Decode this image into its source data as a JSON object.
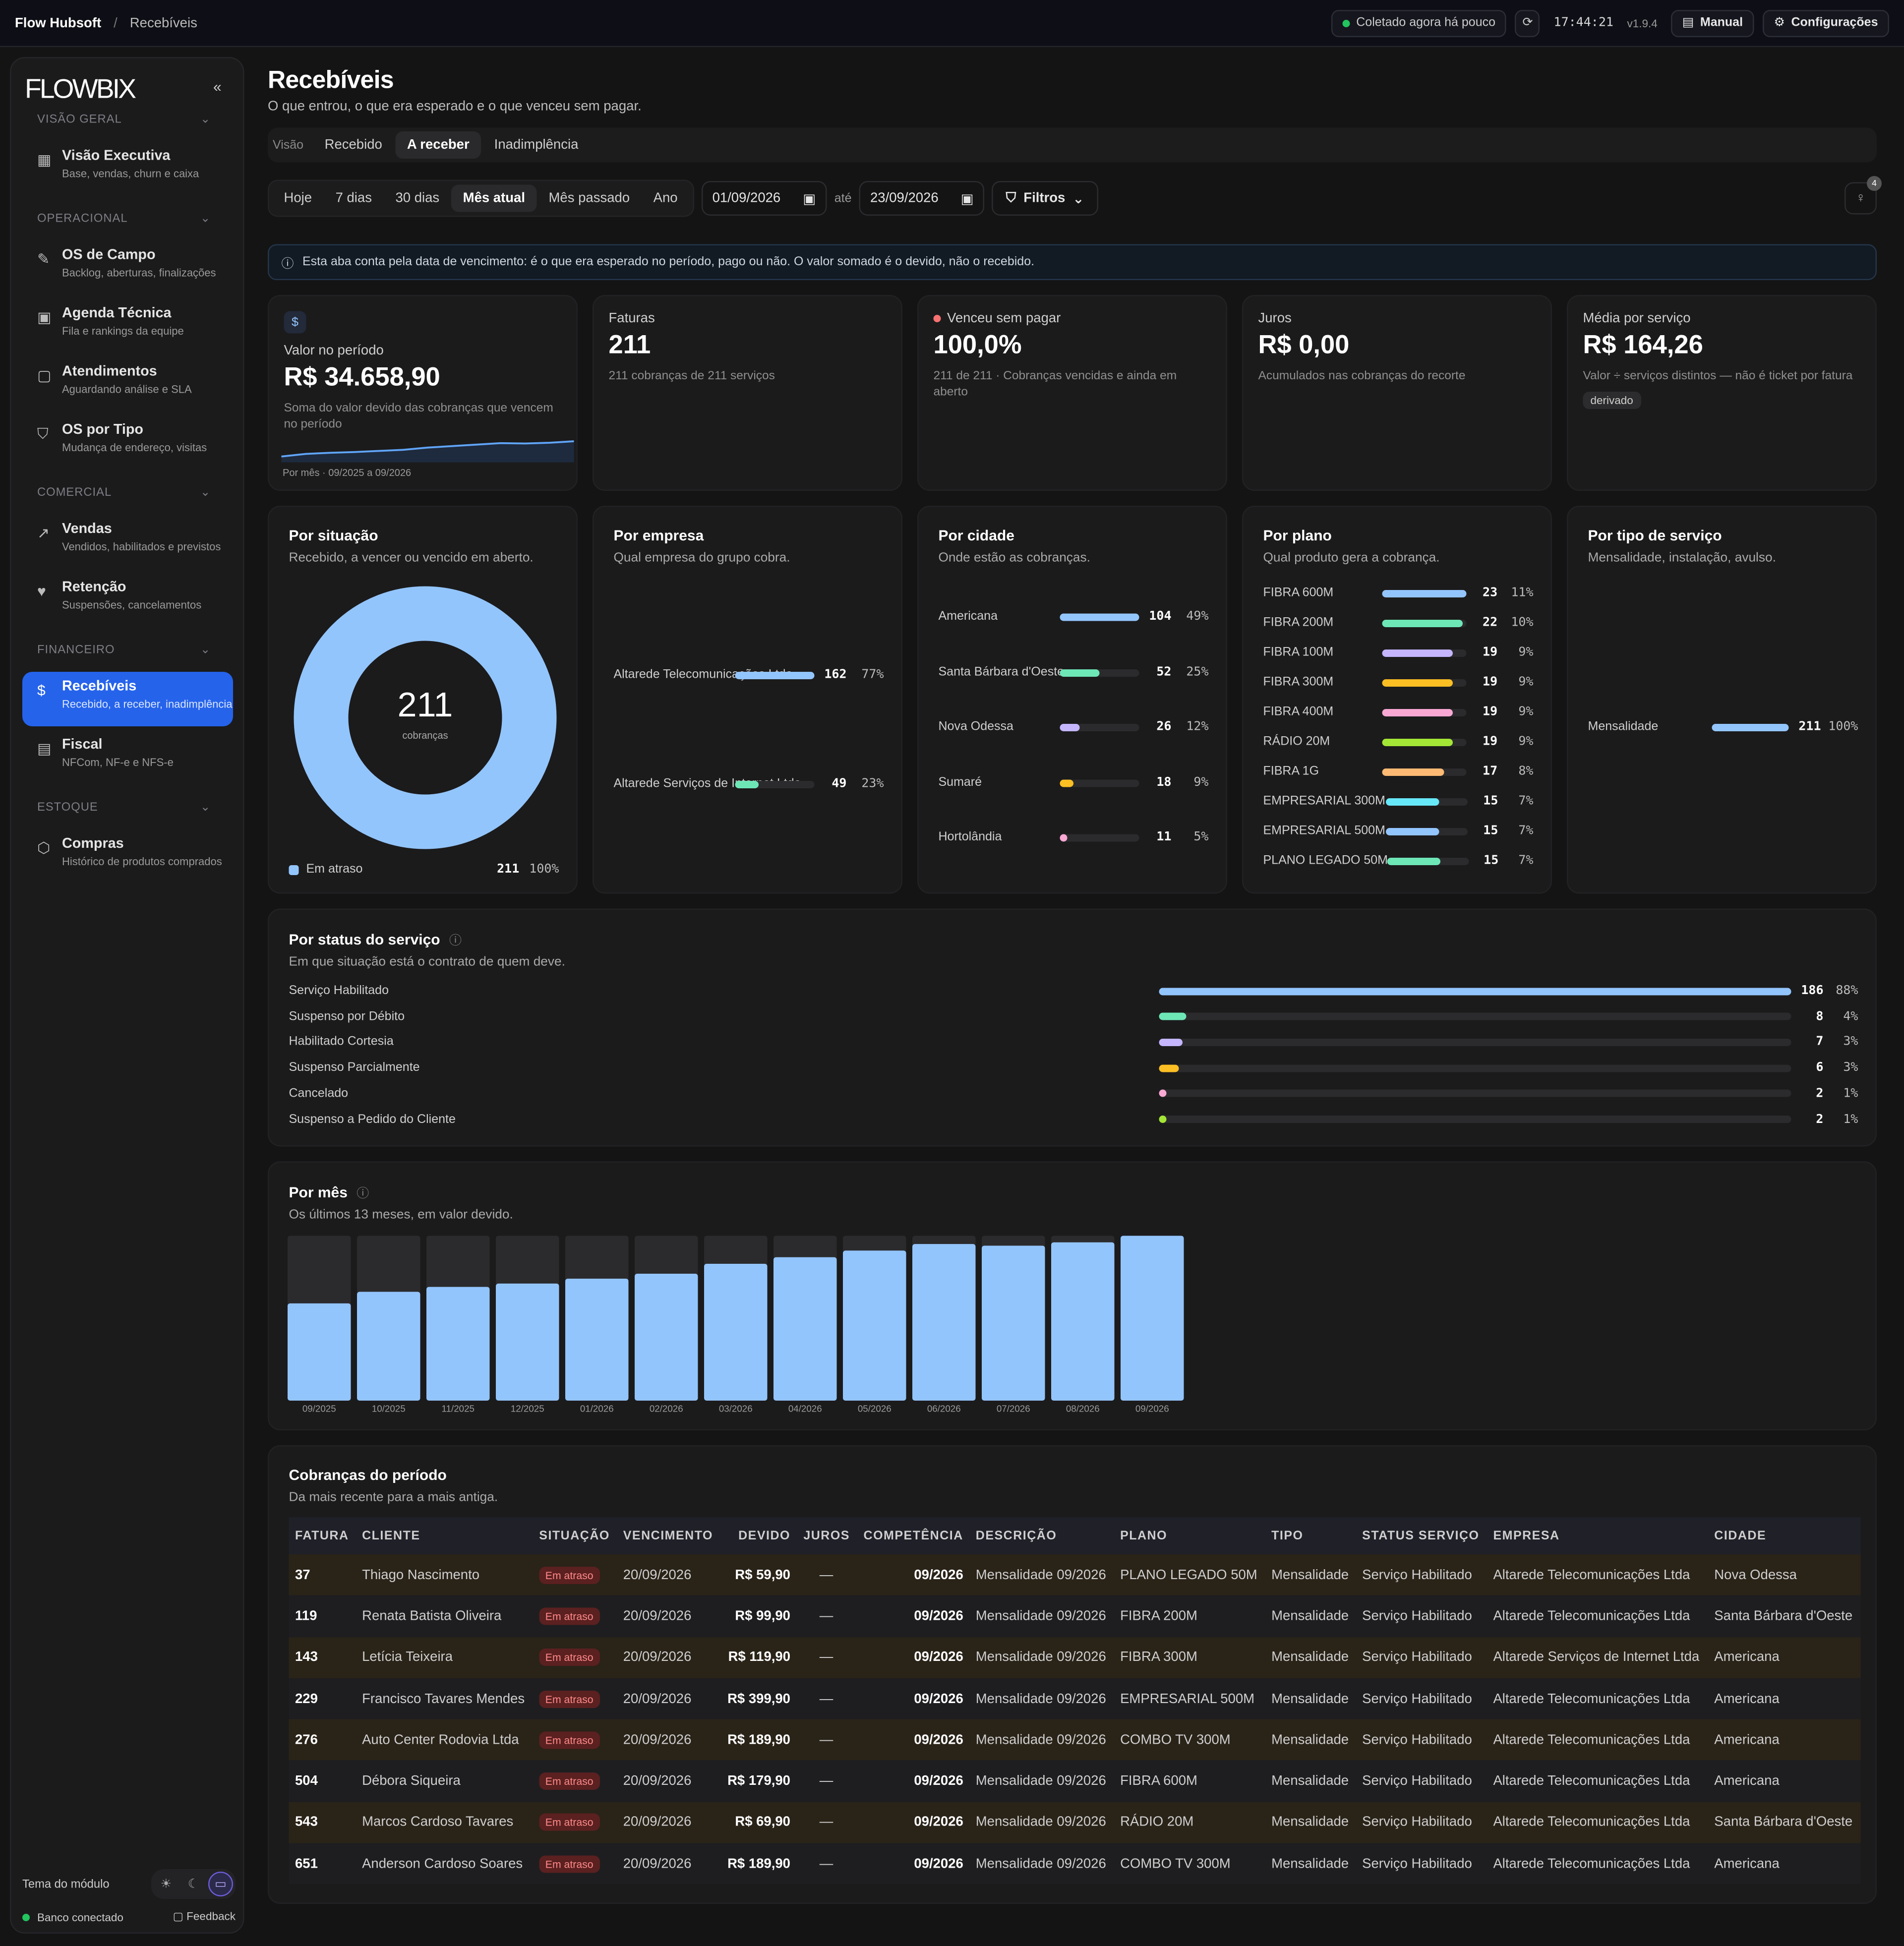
{
  "topbar": {
    "brand": "Flow Hubsoft",
    "separator": "/",
    "crumb": "Recebíveis",
    "status": "Coletado agora há pouco",
    "status_color": "#22c55e",
    "time": "17:44:21",
    "version": "v1.9.4",
    "manual": "Manual",
    "config": "Configurações"
  },
  "sidebar": {
    "logo": "FLOWBIX",
    "collapse": "«",
    "sections": [
      {
        "label": "VISÃO GERAL",
        "items": [
          {
            "icon": "presentation-icon",
            "title": "Visão Executiva",
            "sub": "Base, vendas, churn e caixa"
          }
        ]
      },
      {
        "label": "OPERACIONAL",
        "items": [
          {
            "icon": "wrench-icon",
            "title": "OS de Campo",
            "sub": "Backlog, aberturas, finalizações"
          },
          {
            "icon": "calendar-icon",
            "title": "Agenda Técnica",
            "sub": "Fila e rankings da equipe"
          },
          {
            "icon": "chat-icon",
            "title": "Atendimentos",
            "sub": "Aguardando análise e SLA"
          },
          {
            "icon": "filter-icon",
            "title": "OS por Tipo",
            "sub": "Mudança de endereço, visitas"
          }
        ]
      },
      {
        "label": "COMERCIAL",
        "items": [
          {
            "icon": "trend-icon",
            "title": "Vendas",
            "sub": "Vendidos, habilitados e previstos"
          },
          {
            "icon": "heart-icon",
            "title": "Retenção",
            "sub": "Suspensões, cancelamentos"
          }
        ]
      },
      {
        "label": "FINANCEIRO",
        "items": [
          {
            "icon": "dollar-icon",
            "title": "Recebíveis",
            "sub": "Recebido, a receber, inadimplência",
            "active": true
          },
          {
            "icon": "doc-icon",
            "title": "Fiscal",
            "sub": "NFCom, NF-e e NFS-e"
          }
        ]
      },
      {
        "label": "ESTOQUE",
        "items": [
          {
            "icon": "box-icon",
            "title": "Compras",
            "sub": "Histórico de produtos comprados"
          }
        ]
      }
    ],
    "theme_label": "Tema do módulo",
    "db_status": "Banco conectado",
    "feedback": "Feedback"
  },
  "page": {
    "title": "Recebíveis",
    "subtitle": "O que entrou, o que era esperado e o que venceu sem pagar.",
    "tabs_label": "Visão",
    "tabs": [
      "Recebido",
      "A receber",
      "Inadimplência"
    ],
    "active_tab": "A receber",
    "ranges": [
      "Hoje",
      "7 dias",
      "30 dias",
      "Mês atual",
      "Mês passado",
      "Ano"
    ],
    "active_range": "Mês atual",
    "date_from": "01/09/2026",
    "ate": "até",
    "date_to": "23/09/2026",
    "filters": "Filtros",
    "insights_count": "4",
    "info": "Esta aba conta pela data de vencimento: é o que era esperado no período, pago ou não. O valor somado é o devido, não o recebido."
  },
  "kpis": [
    {
      "label": "Valor no período",
      "value": "R$ 34.658,90",
      "desc": "Soma do valor devido das cobranças que vencem no período",
      "foot": "Por mês · 09/2025 a 09/2026",
      "icon": "$"
    },
    {
      "label": "Faturas",
      "value": "211",
      "desc": "211 cobranças de 211 serviços"
    },
    {
      "label": "Venceu sem pagar",
      "value": "100,0%",
      "desc": "211 de 211 · Cobranças vencidas e ainda em aberto"
    },
    {
      "label": "Juros",
      "value": "R$ 0,00",
      "desc": "Acumulados nas cobranças do recorte"
    },
    {
      "label": "Média por serviço",
      "value": "R$ 164,26",
      "desc": "Valor ÷ serviços distintos — não é ticket por fatura",
      "tag": "derivado"
    }
  ],
  "situacao": {
    "title": "Por situação",
    "sub": "Recebido, a vencer ou vencido em aberto.",
    "center_value": "211",
    "center_label": "cobranças",
    "legend": "Em atraso",
    "count": "211",
    "pct": "100%",
    "color": "#93c5fd"
  },
  "empresa": {
    "title": "Por empresa",
    "sub": "Qual empresa do grupo cobra.",
    "rows": [
      {
        "name": "Altarede Telecomunicações Ltda",
        "count": 162,
        "pct": "77%",
        "frac": 1,
        "color": "#93c5fd"
      },
      {
        "name": "Altarede Serviços de Internet Ltda",
        "count": 49,
        "pct": "23%",
        "frac": 0.3,
        "color": "#6ee7b7"
      }
    ]
  },
  "cidade": {
    "title": "Por cidade",
    "sub": "Onde estão as cobranças.",
    "rows": [
      {
        "name": "Americana",
        "count": 104,
        "pct": "49%",
        "frac": 1,
        "color": "#93c5fd"
      },
      {
        "name": "Santa Bárbara d'Oeste",
        "count": 52,
        "pct": "25%",
        "frac": 0.5,
        "color": "#6ee7b7"
      },
      {
        "name": "Nova Odessa",
        "count": 26,
        "pct": "12%",
        "frac": 0.25,
        "color": "#c4b5fd"
      },
      {
        "name": "Sumaré",
        "count": 18,
        "pct": "9%",
        "frac": 0.17,
        "color": "#fbbf24"
      },
      {
        "name": "Hortolândia",
        "count": 11,
        "pct": "5%",
        "frac": 0.1,
        "color": "#f9a8d4"
      }
    ]
  },
  "plano": {
    "title": "Por plano",
    "sub": "Qual produto gera a cobrança.",
    "rows": [
      {
        "name": "FIBRA 600M",
        "count": 23,
        "pct": "11%",
        "frac": 1,
        "color": "#93c5fd"
      },
      {
        "name": "FIBRA 200M",
        "count": 22,
        "pct": "10%",
        "frac": 0.96,
        "color": "#6ee7b7"
      },
      {
        "name": "FIBRA 100M",
        "count": 19,
        "pct": "9%",
        "frac": 0.83,
        "color": "#c4b5fd"
      },
      {
        "name": "FIBRA 300M",
        "count": 19,
        "pct": "9%",
        "frac": 0.83,
        "color": "#fbbf24"
      },
      {
        "name": "FIBRA 400M",
        "count": 19,
        "pct": "9%",
        "frac": 0.83,
        "color": "#f9a8d4"
      },
      {
        "name": "RÁDIO 20M",
        "count": 19,
        "pct": "9%",
        "frac": 0.83,
        "color": "#a3e635"
      },
      {
        "name": "FIBRA 1G",
        "count": 17,
        "pct": "8%",
        "frac": 0.74,
        "color": "#fdba74"
      },
      {
        "name": "EMPRESARIAL 300M",
        "count": 15,
        "pct": "7%",
        "frac": 0.65,
        "color": "#67e8f9"
      },
      {
        "name": "EMPRESARIAL 500M",
        "count": 15,
        "pct": "7%",
        "frac": 0.65,
        "color": "#93c5fd"
      },
      {
        "name": "PLANO LEGADO 50M",
        "count": 15,
        "pct": "7%",
        "frac": 0.65,
        "color": "#6ee7b7"
      }
    ]
  },
  "tipo": {
    "title": "Por tipo de serviço",
    "sub": "Mensalidade, instalação, avulso.",
    "rows": [
      {
        "name": "Mensalidade",
        "count": 211,
        "pct": "100%",
        "frac": 1,
        "color": "#93c5fd"
      }
    ]
  },
  "status": {
    "title": "Por status do serviço",
    "sub": "Em que situação está o contrato de quem deve.",
    "rows": [
      {
        "name": "Serviço Habilitado",
        "count": 186,
        "pct": "88%",
        "frac": 1,
        "color": "#93c5fd"
      },
      {
        "name": "Suspenso por Débito",
        "count": 8,
        "pct": "4%",
        "frac": 0.043,
        "color": "#6ee7b7"
      },
      {
        "name": "Habilitado Cortesia",
        "count": 7,
        "pct": "3%",
        "frac": 0.038,
        "color": "#c4b5fd"
      },
      {
        "name": "Suspenso Parcialmente",
        "count": 6,
        "pct": "3%",
        "frac": 0.032,
        "color": "#fbbf24"
      },
      {
        "name": "Cancelado",
        "count": 2,
        "pct": "1%",
        "frac": 0.011,
        "color": "#f9a8d4"
      },
      {
        "name": "Suspenso a Pedido do Cliente",
        "count": 2,
        "pct": "1%",
        "frac": 0.011,
        "color": "#a3e635"
      }
    ]
  },
  "mes": {
    "title": "Por mês",
    "sub": "Os últimos 13 meses, em valor devido."
  },
  "chart_data": {
    "type": "bar",
    "categories": [
      "09/2025",
      "10/2025",
      "11/2025",
      "12/2025",
      "01/2026",
      "02/2026",
      "03/2026",
      "04/2026",
      "05/2026",
      "06/2026",
      "07/2026",
      "08/2026",
      "09/2026"
    ],
    "values": [
      0.59,
      0.66,
      0.69,
      0.71,
      0.74,
      0.77,
      0.83,
      0.87,
      0.91,
      0.95,
      0.94,
      0.96,
      1.0
    ],
    "value_unit": "fraction of 09/2026",
    "color": "#93c5fd"
  },
  "table": {
    "title": "Cobranças do período",
    "sub": "Da mais recente para a mais antiga.",
    "columns": [
      "FATURA",
      "CLIENTE",
      "SITUAÇÃO",
      "VENCIMENTO",
      "DEVIDO",
      "JUROS",
      "COMPETÊNCIA",
      "DESCRIÇÃO",
      "PLANO",
      "TIPO",
      "STATUS SERVIÇO",
      "EMPRESA",
      "CIDADE"
    ],
    "rows": [
      [
        "37",
        "Thiago Nascimento",
        "Em atraso",
        "20/09/2026",
        "R$ 59,90",
        "—",
        "09/2026",
        "Mensalidade 09/2026",
        "PLANO LEGADO 50M",
        "Mensalidade",
        "Serviço Habilitado",
        "Altarede Telecomunicações Ltda",
        "Nova Odessa"
      ],
      [
        "119",
        "Renata Batista Oliveira",
        "Em atraso",
        "20/09/2026",
        "R$ 99,90",
        "—",
        "09/2026",
        "Mensalidade 09/2026",
        "FIBRA 200M",
        "Mensalidade",
        "Serviço Habilitado",
        "Altarede Telecomunicações Ltda",
        "Santa Bárbara d'Oeste"
      ],
      [
        "143",
        "Letícia Teixeira",
        "Em atraso",
        "20/09/2026",
        "R$ 119,90",
        "—",
        "09/2026",
        "Mensalidade 09/2026",
        "FIBRA 300M",
        "Mensalidade",
        "Serviço Habilitado",
        "Altarede Serviços de Internet Ltda",
        "Americana"
      ],
      [
        "229",
        "Francisco Tavares Mendes",
        "Em atraso",
        "20/09/2026",
        "R$ 399,90",
        "—",
        "09/2026",
        "Mensalidade 09/2026",
        "EMPRESARIAL 500M",
        "Mensalidade",
        "Serviço Habilitado",
        "Altarede Telecomunicações Ltda",
        "Americana"
      ],
      [
        "276",
        "Auto Center Rodovia Ltda",
        "Em atraso",
        "20/09/2026",
        "R$ 189,90",
        "—",
        "09/2026",
        "Mensalidade 09/2026",
        "COMBO TV 300M",
        "Mensalidade",
        "Serviço Habilitado",
        "Altarede Telecomunicações Ltda",
        "Americana"
      ],
      [
        "504",
        "Débora Siqueira",
        "Em atraso",
        "20/09/2026",
        "R$ 179,90",
        "—",
        "09/2026",
        "Mensalidade 09/2026",
        "FIBRA 600M",
        "Mensalidade",
        "Serviço Habilitado",
        "Altarede Telecomunicações Ltda",
        "Americana"
      ],
      [
        "543",
        "Marcos Cardoso Tavares",
        "Em atraso",
        "20/09/2026",
        "R$ 69,90",
        "—",
        "09/2026",
        "Mensalidade 09/2026",
        "RÁDIO 20M",
        "Mensalidade",
        "Serviço Habilitado",
        "Altarede Telecomunicações Ltda",
        "Santa Bárbara d'Oeste"
      ],
      [
        "651",
        "Anderson Cardoso Soares",
        "Em atraso",
        "20/09/2026",
        "R$ 189,90",
        "—",
        "09/2026",
        "Mensalidade 09/2026",
        "COMBO TV 300M",
        "Mensalidade",
        "Serviço Habilitado",
        "Altarede Telecomunicações Ltda",
        "Americana"
      ]
    ]
  }
}
